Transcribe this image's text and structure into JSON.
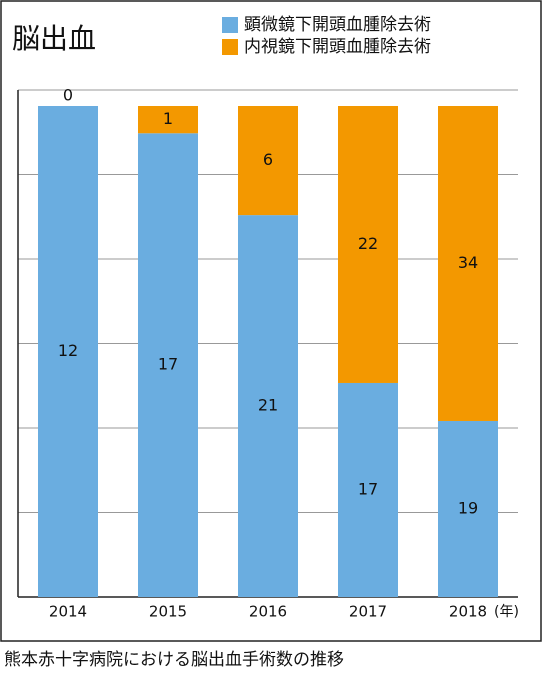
{
  "chart_data": {
    "type": "bar",
    "stacking": "percent",
    "title": "脳出血",
    "categories": [
      "2014",
      "2015",
      "2016",
      "2017",
      "2018"
    ],
    "x_unit": "(年)",
    "series": [
      {
        "name": "顕微鏡下開頭血腫除去術",
        "color": "#6aade0",
        "values": [
          12,
          17,
          21,
          17,
          19
        ]
      },
      {
        "name": "内視鏡下開頭血腫除去術",
        "color": "#f39800",
        "values": [
          0,
          1,
          6,
          22,
          34
        ]
      }
    ],
    "grid": true,
    "legend": "top-right",
    "caption": "熊本赤十字病院における脳出血手術数の推移"
  }
}
